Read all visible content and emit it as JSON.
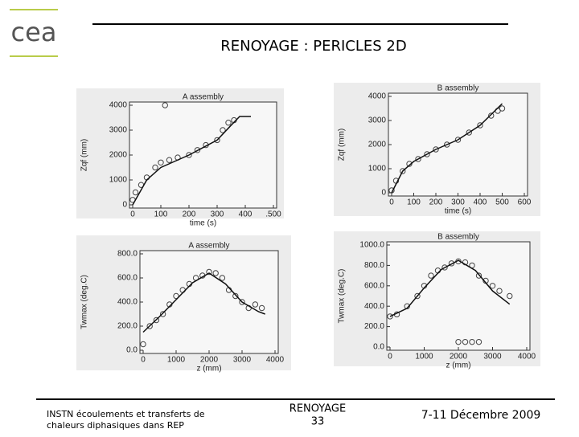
{
  "logo": "cea",
  "header": {
    "title": "RENOYAGE : PERICLES 2D"
  },
  "footer": {
    "left": [
      "INSTN écoulements et transferts de",
      "chaleurs diphasiques dans REP"
    ],
    "center": [
      "RENOYAGE",
      "33"
    ],
    "right": "7-11 Décembre 2009"
  },
  "chart_data": [
    {
      "type": "scatter",
      "title": "A assembly",
      "x_label": "time (s)",
      "y_label": "Zqf (mm)",
      "xlim": [
        0,
        500
      ],
      "xticks": [
        0,
        100,
        200,
        300,
        400,
        {
          "value": 500,
          "label": ".500"
        }
      ],
      "ylim": [
        0,
        4000
      ],
      "yticks": [
        0,
        1000,
        2000,
        3000,
        4000
      ],
      "series": [
        {
          "color": "#444",
          "style": "markers",
          "x": [
            0,
            10,
            30,
            50,
            80,
            100,
            130,
            160,
            200,
            230,
            260,
            300,
            320,
            340,
            360,
            115
          ],
          "values": [
            200,
            500,
            800,
            1100,
            1500,
            1700,
            1800,
            1900,
            2000,
            2200,
            2400,
            2600,
            3000,
            3300,
            3400,
            4000
          ]
        },
        {
          "color": "#111",
          "style": "line",
          "x": [
            0,
            50,
            100,
            200,
            300,
            350,
            380,
            420
          ],
          "values": [
            0,
            1000,
            1500,
            2000,
            2600,
            3200,
            3550,
            3550
          ]
        }
      ]
    },
    {
      "type": "scatter",
      "title": "B assembly",
      "x_label": "time (s)",
      "y_label": "Zqf (mm)",
      "xlim": [
        0,
        600
      ],
      "xticks": [
        0,
        100,
        200,
        300,
        400,
        500,
        600
      ],
      "ylim": [
        0,
        4000
      ],
      "yticks": [
        0,
        1000,
        2000,
        3000,
        4000
      ],
      "series": [
        {
          "color": "#444",
          "style": "markers",
          "x": [
            0,
            20,
            50,
            80,
            120,
            160,
            200,
            250,
            300,
            350,
            400,
            450,
            480,
            500
          ],
          "values": [
            100,
            500,
            900,
            1200,
            1400,
            1600,
            1800,
            2000,
            2200,
            2500,
            2800,
            3200,
            3400,
            3500
          ]
        },
        {
          "color": "#111",
          "style": "line",
          "x": [
            0,
            50,
            100,
            200,
            300,
            400,
            500
          ],
          "values": [
            0,
            900,
            1300,
            1800,
            2200,
            2800,
            3700
          ]
        }
      ]
    },
    {
      "type": "scatter",
      "title": "A assembly",
      "x_label": "z (mm)",
      "y_label": "Twmax (deg.C)",
      "xlim": [
        0,
        4000
      ],
      "xticks": [
        0,
        1000,
        2000,
        3000,
        4000
      ],
      "ylim": [
        0,
        800
      ],
      "yticks": [
        {
          "value": 0,
          "label": "0.0"
        },
        {
          "value": 200,
          "label": "200.0"
        },
        {
          "value": 400,
          "label": "400.0"
        },
        {
          "value": 600,
          "label": "600.0"
        },
        {
          "value": 800,
          "label": "800.0"
        }
      ],
      "series": [
        {
          "color": "#444",
          "style": "markers",
          "x": [
            0,
            200,
            400,
            600,
            800,
            1000,
            1200,
            1400,
            1600,
            1800,
            2000,
            2200,
            2400,
            2600,
            2800,
            3000,
            3200,
            3400,
            3600
          ],
          "values": [
            50,
            200,
            250,
            300,
            380,
            450,
            500,
            550,
            600,
            620,
            650,
            640,
            600,
            500,
            450,
            400,
            350,
            380,
            350
          ]
        },
        {
          "color": "#111",
          "style": "line",
          "x": [
            0,
            500,
            1000,
            1500,
            2000,
            2500,
            3000,
            3500,
            3700
          ],
          "values": [
            150,
            280,
            420,
            560,
            640,
            550,
            400,
            320,
            300
          ]
        }
      ]
    },
    {
      "type": "scatter",
      "title": "B assembly",
      "x_label": "z (mm)",
      "y_label": "Twmax (deg.C)",
      "xlim": [
        0,
        4000
      ],
      "xticks": [
        0,
        1000,
        2000,
        3000,
        4000
      ],
      "ylim": [
        0,
        1000
      ],
      "yticks": [
        {
          "value": 0,
          "label": "0.0"
        },
        {
          "value": 200,
          "label": "200.0"
        },
        {
          "value": 400,
          "label": "400.0"
        },
        {
          "value": 600,
          "label": "600.0"
        },
        {
          "value": 800,
          "label": "800.0"
        },
        {
          "value": 1000,
          "label": "1000.0"
        }
      ],
      "series": [
        {
          "color": "#444",
          "style": "markers",
          "x": [
            0,
            200,
            500,
            800,
            1000,
            1200,
            1400,
            1600,
            1800,
            2000,
            2200,
            2400,
            2600,
            2800,
            3000,
            3200,
            3500,
            2000,
            2200,
            2400,
            2600
          ],
          "values": [
            300,
            320,
            400,
            500,
            600,
            700,
            750,
            780,
            820,
            840,
            830,
            800,
            700,
            650,
            600,
            550,
            500,
            50,
            50,
            50,
            50
          ]
        },
        {
          "color": "#111",
          "style": "line",
          "x": [
            0,
            500,
            1000,
            1500,
            2000,
            2500,
            3000,
            3500
          ],
          "values": [
            300,
            380,
            580,
            760,
            850,
            750,
            550,
            420
          ]
        }
      ]
    }
  ]
}
